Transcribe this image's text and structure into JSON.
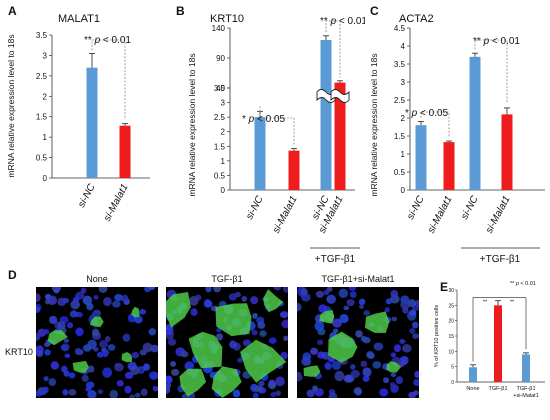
{
  "panel_letters": {
    "a": "A",
    "b": "B",
    "c": "C",
    "d": "D",
    "e": "E"
  },
  "ylabel_mrna": "mRNA relative expression level to 18s",
  "colors": {
    "blue": "#5b9bd5",
    "red": "#ee1c1c",
    "axis": "#333333"
  },
  "chart_data": [
    {
      "id": "A",
      "type": "bar",
      "title": "MALAT1",
      "categories": [
        "si-NC",
        "si-Malat1"
      ],
      "values": [
        2.7,
        1.28
      ],
      "errors": [
        0.35,
        0.05
      ],
      "ylim": [
        0,
        3.5
      ],
      "yticks": [
        "0",
        "0.5",
        "1",
        "1.5",
        "2",
        "2.5",
        "3",
        "3.5"
      ],
      "ylabel": "mRNA relative expression level to 18s",
      "annotation": "** p < 0.01"
    },
    {
      "id": "B",
      "type": "bar",
      "title": "KRT10",
      "broken_axis": true,
      "categories": [
        "si-NC",
        "si-Malat1",
        "si-NC",
        "si-Malat1"
      ],
      "values": [
        2.5,
        1.35,
        120,
        49
      ],
      "errors": [
        0.2,
        0.07,
        7,
        3
      ],
      "yticks_lower": [
        "0",
        "0.5",
        "1",
        "1.5",
        "2",
        "2.5",
        "3",
        "3.5"
      ],
      "yticks_upper": [
        "40",
        "90",
        "140"
      ],
      "ylabel": "mRNA relative expression level to 18s",
      "annotations": [
        "* p < 0.05",
        "** p < 0.01"
      ],
      "group_label": "+TGF-β1"
    },
    {
      "id": "C",
      "type": "bar",
      "title": "ACTA2",
      "categories": [
        "si-NC",
        "si-Malat1",
        "si-NC",
        "si-Malat1"
      ],
      "values": [
        1.8,
        1.33,
        3.7,
        2.1
      ],
      "errors": [
        0.1,
        0.03,
        0.1,
        0.18
      ],
      "ylim": [
        0,
        4.5
      ],
      "yticks": [
        "0",
        "0.5",
        "1",
        "1.5",
        "2",
        "2.5",
        "3",
        "3.5",
        "4",
        "4.5"
      ],
      "ylabel": "mRNA relative expression level to 18s",
      "annotations": [
        "* p < 0.05",
        "** p < 0.01"
      ],
      "group_label": "+TGF-β1"
    },
    {
      "id": "E",
      "type": "bar",
      "categories": [
        "None",
        "TGF-β1",
        "TGF-β1 +si-Malat1"
      ],
      "values": [
        4.8,
        25,
        9
      ],
      "errors": [
        0.8,
        1.5,
        0.5
      ],
      "ylim": [
        0,
        30
      ],
      "yticks": [
        "0",
        "5",
        "10",
        "15",
        "20",
        "25",
        "30"
      ],
      "ylabel": "% of KRT10 positive cells",
      "annotation": "** p < 0.01",
      "sig_marks": [
        "**",
        "**"
      ]
    }
  ],
  "microscopy": {
    "row_label": "KRT10",
    "panels": [
      "None",
      "TGF-β1",
      "TGF-β1+si-Malat1"
    ]
  }
}
